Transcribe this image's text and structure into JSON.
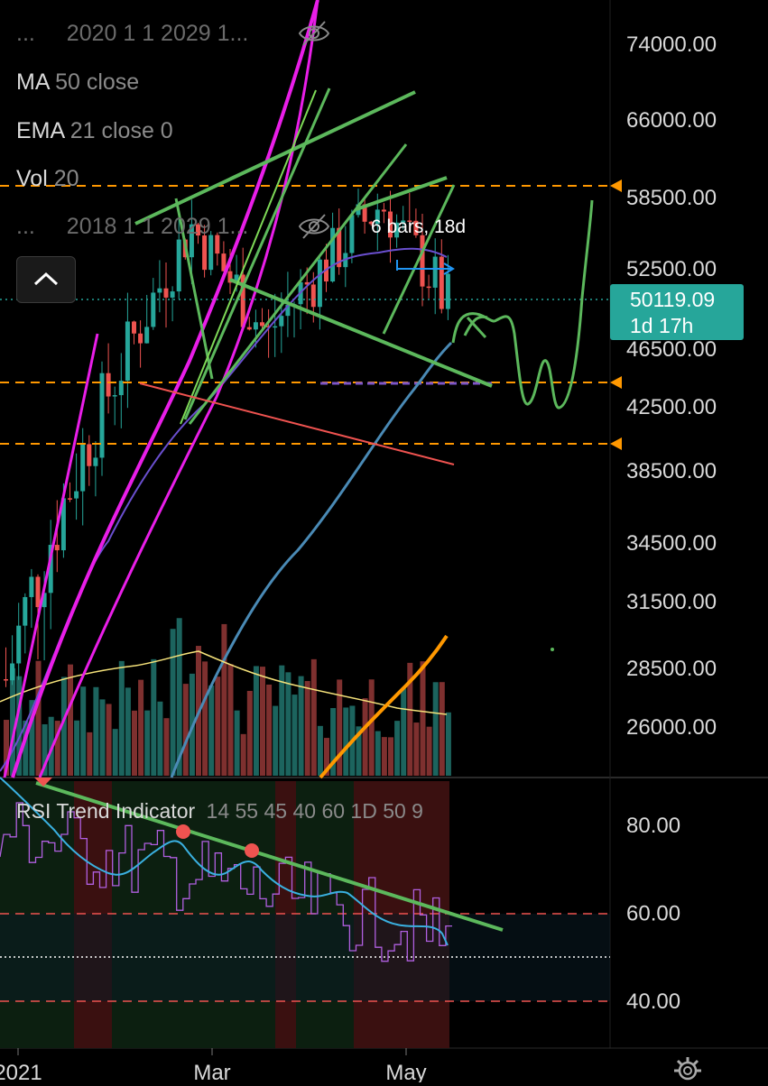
{
  "legend": {
    "row1": {
      "prefix": "...",
      "text": "2020 1 1 2029 1..."
    },
    "ma": {
      "name": "MA",
      "params": "50 close"
    },
    "ema": {
      "name": "EMA",
      "params": "21 close 0"
    },
    "vol": {
      "name": "Vol",
      "params": "20"
    },
    "row5": {
      "prefix": "...",
      "text": "2018 1 1 2029 1..."
    }
  },
  "measurement_label": "6 bars, 18d",
  "last_price": {
    "value": "50119.09",
    "countdown": "1d 17h",
    "color": "#26a69a"
  },
  "rsi_legend": {
    "name": "RSI Trend Indicator",
    "params": "14 55 45 40 60 1D 50 9"
  },
  "colors": {
    "up": "#26a69a",
    "down": "#ef5350",
    "magenta": "#e91ee8",
    "green_line": "#5cb85c",
    "orange": "#ff9800",
    "blue_ma": "#4a8ab5"
  },
  "icons": [
    "eye-hidden-icon",
    "chevron-up-icon",
    "gear-icon",
    "alert-marker-icon"
  ],
  "chart_data": {
    "type": "candlestick",
    "price_axis_ticks": [
      "74000.00",
      "66000.00",
      "58500.00",
      "52500.00",
      "46500.00",
      "42500.00",
      "38500.00",
      "34500.00",
      "31500.00",
      "28500.00",
      "26000.00"
    ],
    "price_axis_values": [
      74000,
      66000,
      58500,
      52500,
      46500,
      42500,
      38500,
      34500,
      31500,
      28500,
      26000
    ],
    "rsi_axis_ticks": [
      "80.00",
      "60.00",
      "40.00"
    ],
    "rsi_axis_values": [
      80,
      60,
      40
    ],
    "time_axis_ticks": [
      "2021",
      "Mar",
      "May"
    ],
    "horizontal_levels": [
      59000,
      44000,
      40500
    ],
    "rsi_levels": [
      60,
      50,
      40
    ]
  }
}
